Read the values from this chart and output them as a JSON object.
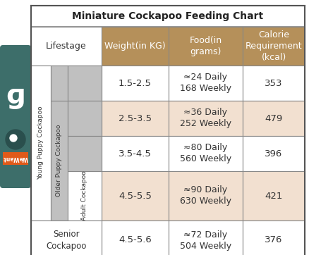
{
  "title": "Miniature Cockapoo Feeding Chart",
  "header_bg": "#b5905a",
  "header_text_color": "#ffffff",
  "row_bg_light": "#f2e0d0",
  "row_bg_white": "#ffffff",
  "row_bg_gray": "#c0c0c0",
  "border_color": "#888888",
  "text_color": "#333333",
  "lifestage_col_header": "Lifestage",
  "weight_col_header": "Weight(in KG)",
  "food_col_header": "Food(in\ngrams)",
  "calorie_col_header": "Calorie\nRequirement\n(kcal)",
  "rows": [
    {
      "weight": "1.5-2.5",
      "food": "≈24 Daily\n168 Weekly",
      "calorie": "353",
      "bg": "#ffffff"
    },
    {
      "weight": "2.5-3.5",
      "food": "≈36 Daily\n252 Weekly",
      "calorie": "479",
      "bg": "#f2e0d0"
    },
    {
      "weight": "3.5-4.5",
      "food": "≈80 Daily\n560 Weekly",
      "calorie": "396",
      "bg": "#ffffff"
    },
    {
      "weight": "4.5-5.5",
      "food": "≈90 Daily\n630 Weekly",
      "calorie": "421",
      "bg": "#f2e0d0"
    },
    {
      "weight": "4.5-5.6",
      "food": "≈72 Daily\n504 Weekly",
      "calorie": "376",
      "bg": "#ffffff"
    }
  ],
  "young_puppy_label": "Young Puppy Cockapoo",
  "older_puppy_label": "Older Puppy Cockapoo",
  "adult_label": "Adult Cockapoo",
  "senior_label": "Senior\nCockapoo",
  "logo_color": "#3d6e6a",
  "logo_text_color": "#ffffff",
  "wewant_bg": "#e05a1a",
  "wewant_text": "WeWant"
}
